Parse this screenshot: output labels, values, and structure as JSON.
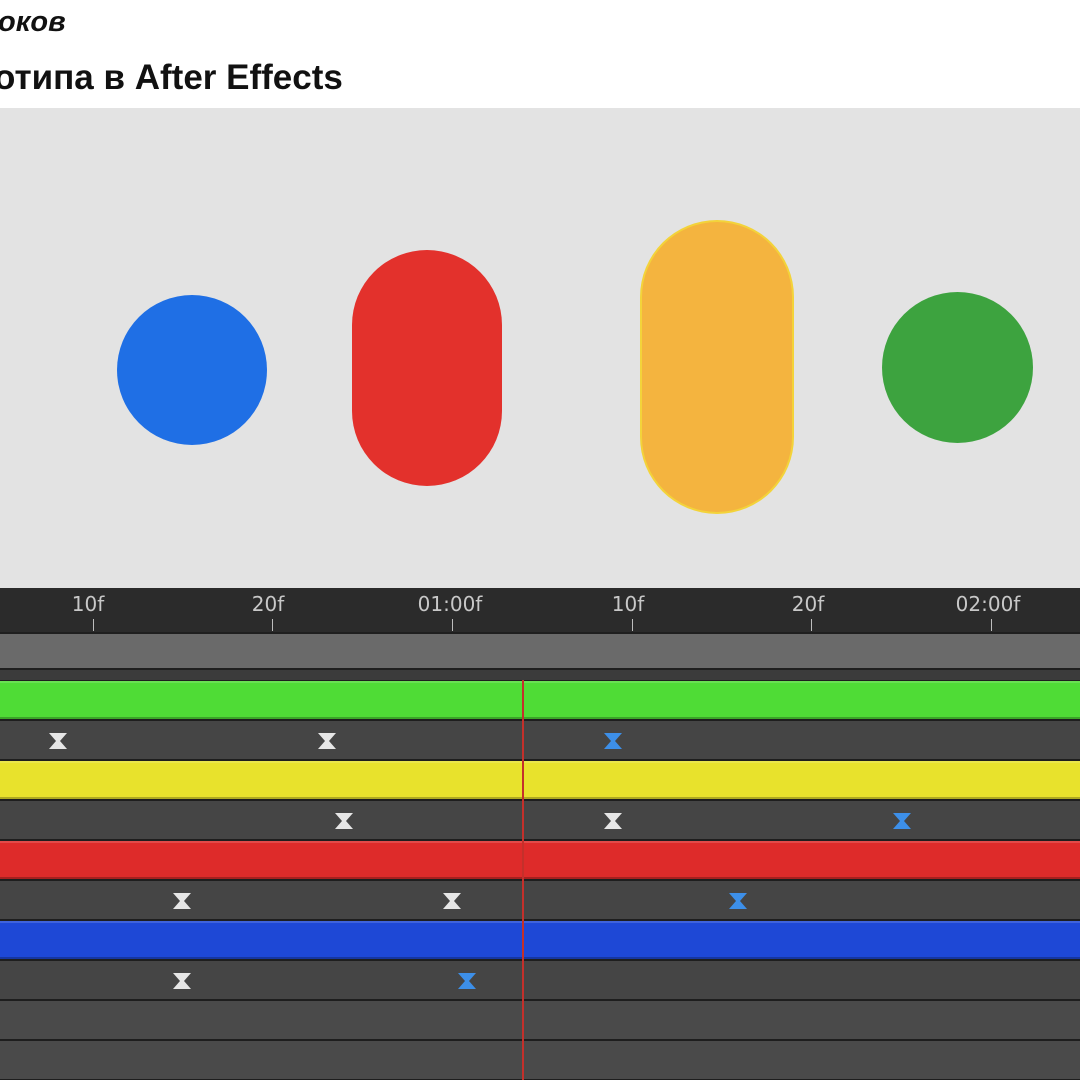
{
  "header": {
    "line1": "оков",
    "line2": "отипа в After Effects"
  },
  "preview": {
    "background": "#e3e3e3",
    "shapes": [
      {
        "name": "blue-dot",
        "color": "#1f6fe5",
        "kind": "circle"
      },
      {
        "name": "red-pill",
        "color": "#e3312c",
        "kind": "pill"
      },
      {
        "name": "yellow-pill",
        "color": "#f4b43f",
        "kind": "pill"
      },
      {
        "name": "green-dot",
        "color": "#3da33f",
        "kind": "circle"
      }
    ]
  },
  "ruler": {
    "labels": [
      "10f",
      "20f",
      "01:00f",
      "10f",
      "20f",
      "02:00f"
    ]
  },
  "timeline": {
    "layers": [
      {
        "name": "green",
        "color": "#4fdc36",
        "keyframes": [
          {
            "type": "ease",
            "color": "white"
          },
          {
            "type": "ease",
            "color": "white"
          },
          {
            "type": "ease",
            "color": "blue"
          }
        ]
      },
      {
        "name": "yellow",
        "color": "#e8e22c",
        "keyframes": [
          {
            "type": "ease",
            "color": "white"
          },
          {
            "type": "ease",
            "color": "white"
          },
          {
            "type": "ease",
            "color": "blue"
          }
        ]
      },
      {
        "name": "red",
        "color": "#de2b2a",
        "keyframes": [
          {
            "type": "ease",
            "color": "white"
          },
          {
            "type": "ease",
            "color": "white"
          },
          {
            "type": "ease",
            "color": "blue"
          }
        ]
      },
      {
        "name": "blue",
        "color": "#1e48d6",
        "keyframes": [
          {
            "type": "ease",
            "color": "white"
          },
          {
            "type": "ease",
            "color": "blue"
          }
        ]
      }
    ],
    "playhead_color": "#c4302b"
  }
}
